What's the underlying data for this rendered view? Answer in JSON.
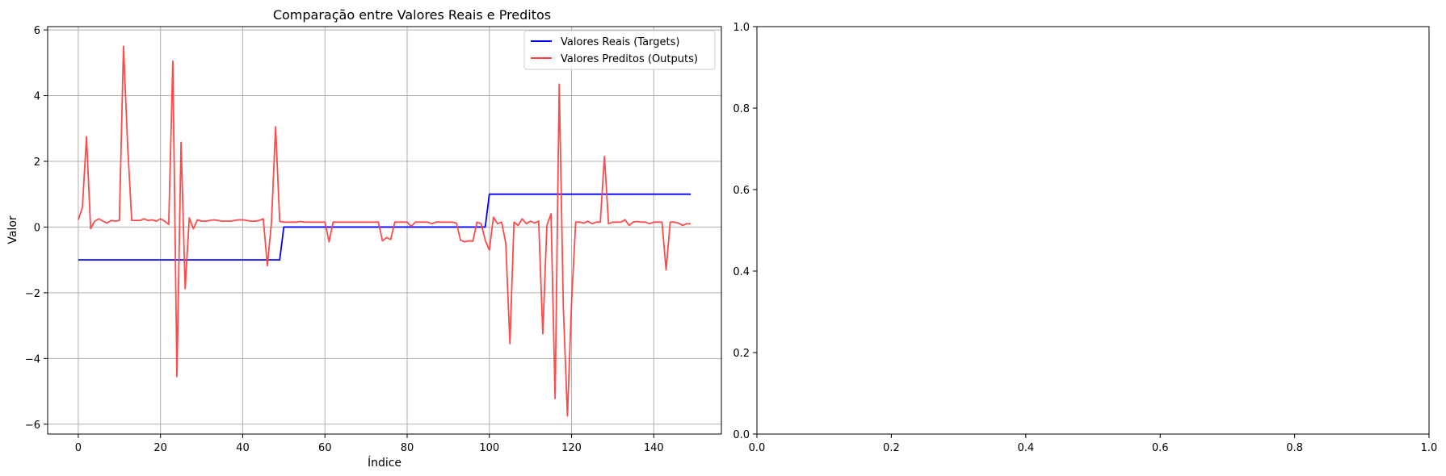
{
  "chart_data": [
    {
      "type": "line",
      "title": "Comparação entre Valores Reais e Preditos",
      "xlabel": "Índice",
      "ylabel": "Valor",
      "xlim": [
        -7.45,
        156.45
      ],
      "ylim": [
        -6.3,
        6.1
      ],
      "xticks": [
        0,
        20,
        40,
        60,
        80,
        100,
        120,
        140
      ],
      "yticks": [
        -6,
        -4,
        -2,
        0,
        2,
        4,
        6
      ],
      "grid": true,
      "legend": "top-right",
      "series": [
        {
          "name": "Valores Reais (Targets)",
          "color": "#0000ff",
          "x": [
            0,
            49,
            50,
            99,
            100,
            149
          ],
          "y": [
            -1,
            -1,
            0,
            0,
            1,
            1
          ]
        },
        {
          "name": "Valores Preditos (Outputs)",
          "color": "#ff4040",
          "x": [
            0,
            1,
            2,
            3,
            4,
            5,
            6,
            7,
            8,
            9,
            10,
            11,
            12,
            13,
            14,
            15,
            16,
            17,
            18,
            19,
            20,
            21,
            22,
            23,
            24,
            25,
            26,
            27,
            28,
            29,
            30,
            31,
            32,
            33,
            34,
            35,
            36,
            37,
            38,
            39,
            40,
            41,
            42,
            43,
            44,
            45,
            46,
            47,
            48,
            49,
            50,
            51,
            52,
            53,
            54,
            55,
            56,
            57,
            58,
            59,
            60,
            61,
            62,
            63,
            64,
            65,
            66,
            67,
            68,
            69,
            70,
            71,
            72,
            73,
            74,
            75,
            76,
            77,
            78,
            79,
            80,
            81,
            82,
            83,
            84,
            85,
            86,
            87,
            88,
            89,
            90,
            91,
            92,
            93,
            94,
            95,
            96,
            97,
            98,
            99,
            100,
            101,
            102,
            103,
            104,
            105,
            106,
            107,
            108,
            109,
            110,
            111,
            112,
            113,
            114,
            115,
            116,
            117,
            118,
            119,
            120,
            121,
            122,
            123,
            124,
            125,
            126,
            127,
            128,
            129,
            130,
            131,
            132,
            133,
            134,
            135,
            136,
            137,
            138,
            139,
            140,
            141,
            142,
            143,
            144,
            145,
            146,
            147,
            148,
            149
          ],
          "y": [
            0.22,
            0.6,
            2.75,
            -0.05,
            0.18,
            0.25,
            0.18,
            0.12,
            0.2,
            0.18,
            0.2,
            5.5,
            2.5,
            0.2,
            0.2,
            0.2,
            0.25,
            0.2,
            0.22,
            0.18,
            0.25,
            0.18,
            0.08,
            5.05,
            -4.55,
            2.58,
            -1.88,
            0.28,
            -0.05,
            0.22,
            0.18,
            0.18,
            0.2,
            0.22,
            0.2,
            0.18,
            0.18,
            0.18,
            0.2,
            0.22,
            0.22,
            0.2,
            0.18,
            0.18,
            0.2,
            0.25,
            -1.18,
            0.15,
            3.05,
            0.17,
            0.15,
            0.15,
            0.15,
            0.15,
            0.17,
            0.15,
            0.15,
            0.15,
            0.15,
            0.15,
            0.15,
            -0.45,
            0.15,
            0.15,
            0.15,
            0.15,
            0.15,
            0.15,
            0.15,
            0.15,
            0.15,
            0.15,
            0.15,
            0.15,
            -0.42,
            -0.32,
            -0.38,
            0.15,
            0.15,
            0.15,
            0.15,
            0.02,
            0.15,
            0.15,
            0.15,
            0.15,
            0.1,
            0.15,
            0.15,
            0.15,
            0.15,
            0.15,
            0.12,
            -0.4,
            -0.45,
            -0.42,
            -0.43,
            0.15,
            0.1,
            -0.4,
            -0.7,
            0.3,
            0.1,
            0.15,
            -0.5,
            -3.55,
            0.15,
            0.05,
            0.25,
            0.1,
            0.18,
            0.12,
            0.18,
            -3.25,
            0.05,
            0.4,
            -5.22,
            4.35,
            -2.45,
            -5.75,
            -2.3,
            0.15,
            0.15,
            0.12,
            0.18,
            0.1,
            0.15,
            0.15,
            2.15,
            0.1,
            0.15,
            0.15,
            0.15,
            0.22,
            0.05,
            0.15,
            0.17,
            0.15,
            0.15,
            0.1,
            0.15,
            0.15,
            0.15,
            -1.3,
            0.15,
            0.15,
            0.12,
            0.05,
            0.1,
            0.1
          ]
        }
      ]
    },
    {
      "type": "line",
      "title": "",
      "xlabel": "",
      "ylabel": "",
      "xlim": [
        0,
        1
      ],
      "ylim": [
        0,
        1
      ],
      "xticks": [
        "0.0",
        "0.2",
        "0.4",
        "0.6",
        "0.8",
        "1.0"
      ],
      "yticks": [
        "0.0",
        "0.2",
        "0.4",
        "0.6",
        "0.8",
        "1.0"
      ],
      "grid": false,
      "series": []
    }
  ]
}
